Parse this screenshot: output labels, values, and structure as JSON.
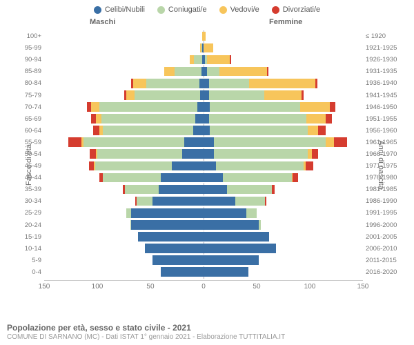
{
  "chart": {
    "type": "population-pyramid",
    "legend": [
      {
        "label": "Celibi/Nubili",
        "color": "#3a6fa5"
      },
      {
        "label": "Coniugati/e",
        "color": "#b9d6a9"
      },
      {
        "label": "Vedovi/e",
        "color": "#f7c55b"
      },
      {
        "label": "Divorziati/e",
        "color": "#d53c2f"
      }
    ],
    "header_male": "Maschi",
    "header_female": "Femmine",
    "y_left_title": "Fasce di età",
    "y_right_title": "Anni di nascita",
    "xmax": 150,
    "xticks": [
      150,
      100,
      50,
      0,
      50,
      100,
      150
    ],
    "colors": {
      "single": "#3a6fa5",
      "married": "#b9d6a9",
      "widowed": "#f7c55b",
      "divorced": "#d53c2f",
      "grid": "#dcdce4",
      "background": "#ffffff"
    },
    "rows": [
      {
        "age": "100+",
        "birth": "≤ 1920",
        "m": {
          "s": 0,
          "m": 0,
          "w": 1,
          "d": 0
        },
        "f": {
          "s": 0,
          "m": 0,
          "w": 2,
          "d": 0
        }
      },
      {
        "age": "95-99",
        "birth": "1921-1925",
        "m": {
          "s": 1,
          "m": 1,
          "w": 1,
          "d": 0
        },
        "f": {
          "s": 0,
          "m": 0,
          "w": 9,
          "d": 0
        }
      },
      {
        "age": "90-94",
        "birth": "1926-1930",
        "m": {
          "s": 1,
          "m": 8,
          "w": 4,
          "d": 0
        },
        "f": {
          "s": 1,
          "m": 2,
          "w": 22,
          "d": 1
        }
      },
      {
        "age": "85-89",
        "birth": "1931-1935",
        "m": {
          "s": 2,
          "m": 25,
          "w": 10,
          "d": 0
        },
        "f": {
          "s": 3,
          "m": 12,
          "w": 45,
          "d": 1
        }
      },
      {
        "age": "80-84",
        "birth": "1936-1940",
        "m": {
          "s": 4,
          "m": 50,
          "w": 12,
          "d": 2
        },
        "f": {
          "s": 5,
          "m": 38,
          "w": 62,
          "d": 2
        }
      },
      {
        "age": "75-79",
        "birth": "1941-1945",
        "m": {
          "s": 3,
          "m": 62,
          "w": 8,
          "d": 2
        },
        "f": {
          "s": 5,
          "m": 52,
          "w": 35,
          "d": 2
        }
      },
      {
        "age": "70-74",
        "birth": "1946-1950",
        "m": {
          "s": 6,
          "m": 92,
          "w": 8,
          "d": 4
        },
        "f": {
          "s": 6,
          "m": 85,
          "w": 28,
          "d": 5
        }
      },
      {
        "age": "65-69",
        "birth": "1951-1955",
        "m": {
          "s": 8,
          "m": 88,
          "w": 5,
          "d": 5
        },
        "f": {
          "s": 5,
          "m": 92,
          "w": 18,
          "d": 6
        }
      },
      {
        "age": "60-64",
        "birth": "1956-1960",
        "m": {
          "s": 10,
          "m": 85,
          "w": 3,
          "d": 6
        },
        "f": {
          "s": 6,
          "m": 92,
          "w": 10,
          "d": 7
        }
      },
      {
        "age": "55-59",
        "birth": "1961-1965",
        "m": {
          "s": 18,
          "m": 95,
          "w": 2,
          "d": 12
        },
        "f": {
          "s": 10,
          "m": 105,
          "w": 8,
          "d": 12
        }
      },
      {
        "age": "50-54",
        "birth": "1966-1970",
        "m": {
          "s": 20,
          "m": 80,
          "w": 1,
          "d": 6
        },
        "f": {
          "s": 10,
          "m": 88,
          "w": 4,
          "d": 6
        }
      },
      {
        "age": "45-49",
        "birth": "1971-1975",
        "m": {
          "s": 30,
          "m": 72,
          "w": 1,
          "d": 5
        },
        "f": {
          "s": 12,
          "m": 82,
          "w": 2,
          "d": 7
        }
      },
      {
        "age": "40-44",
        "birth": "1976-1980",
        "m": {
          "s": 40,
          "m": 55,
          "w": 0,
          "d": 3
        },
        "f": {
          "s": 18,
          "m": 65,
          "w": 1,
          "d": 5
        }
      },
      {
        "age": "35-39",
        "birth": "1981-1985",
        "m": {
          "s": 42,
          "m": 32,
          "w": 0,
          "d": 2
        },
        "f": {
          "s": 22,
          "m": 42,
          "w": 0,
          "d": 3
        }
      },
      {
        "age": "30-34",
        "birth": "1986-1990",
        "m": {
          "s": 48,
          "m": 15,
          "w": 0,
          "d": 1
        },
        "f": {
          "s": 30,
          "m": 28,
          "w": 0,
          "d": 1
        }
      },
      {
        "age": "25-29",
        "birth": "1991-1995",
        "m": {
          "s": 68,
          "m": 5,
          "w": 0,
          "d": 0
        },
        "f": {
          "s": 40,
          "m": 10,
          "w": 0,
          "d": 0
        }
      },
      {
        "age": "20-24",
        "birth": "1996-2000",
        "m": {
          "s": 68,
          "m": 1,
          "w": 0,
          "d": 0
        },
        "f": {
          "s": 52,
          "m": 2,
          "w": 0,
          "d": 0
        }
      },
      {
        "age": "15-19",
        "birth": "2001-2005",
        "m": {
          "s": 62,
          "m": 0,
          "w": 0,
          "d": 0
        },
        "f": {
          "s": 62,
          "m": 0,
          "w": 0,
          "d": 0
        }
      },
      {
        "age": "10-14",
        "birth": "2006-2010",
        "m": {
          "s": 55,
          "m": 0,
          "w": 0,
          "d": 0
        },
        "f": {
          "s": 68,
          "m": 0,
          "w": 0,
          "d": 0
        }
      },
      {
        "age": "5-9",
        "birth": "2011-2015",
        "m": {
          "s": 48,
          "m": 0,
          "w": 0,
          "d": 0
        },
        "f": {
          "s": 52,
          "m": 0,
          "w": 0,
          "d": 0
        }
      },
      {
        "age": "0-4",
        "birth": "2016-2020",
        "m": {
          "s": 40,
          "m": 0,
          "w": 0,
          "d": 0
        },
        "f": {
          "s": 42,
          "m": 0,
          "w": 0,
          "d": 0
        }
      }
    ],
    "title": "Popolazione per età, sesso e stato civile - 2021",
    "subtitle": "COMUNE DI SARNANO (MC) - Dati ISTAT 1° gennaio 2021 - Elaborazione TUTTITALIA.IT"
  }
}
